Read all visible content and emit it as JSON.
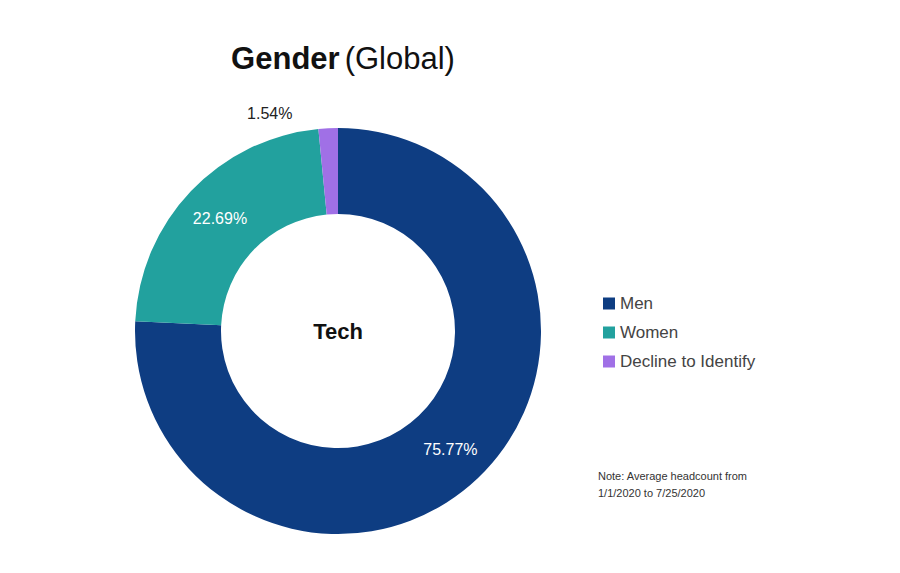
{
  "chart_data": {
    "type": "pie",
    "title": "Gender (Global)",
    "center_text": "Tech",
    "categories": [
      "Men",
      "Women",
      "Decline to Identify"
    ],
    "values": [
      75.77,
      22.69,
      1.54
    ],
    "value_labels": [
      "75.77%",
      "22.69%",
      "1.54%"
    ],
    "colors": [
      "#0e3d82",
      "#22a19e",
      "#a070e6"
    ],
    "data_labels": true,
    "legend": "right",
    "note": [
      "Note: Average headcount from",
      "1/1/2020 to 7/25/2020"
    ]
  }
}
